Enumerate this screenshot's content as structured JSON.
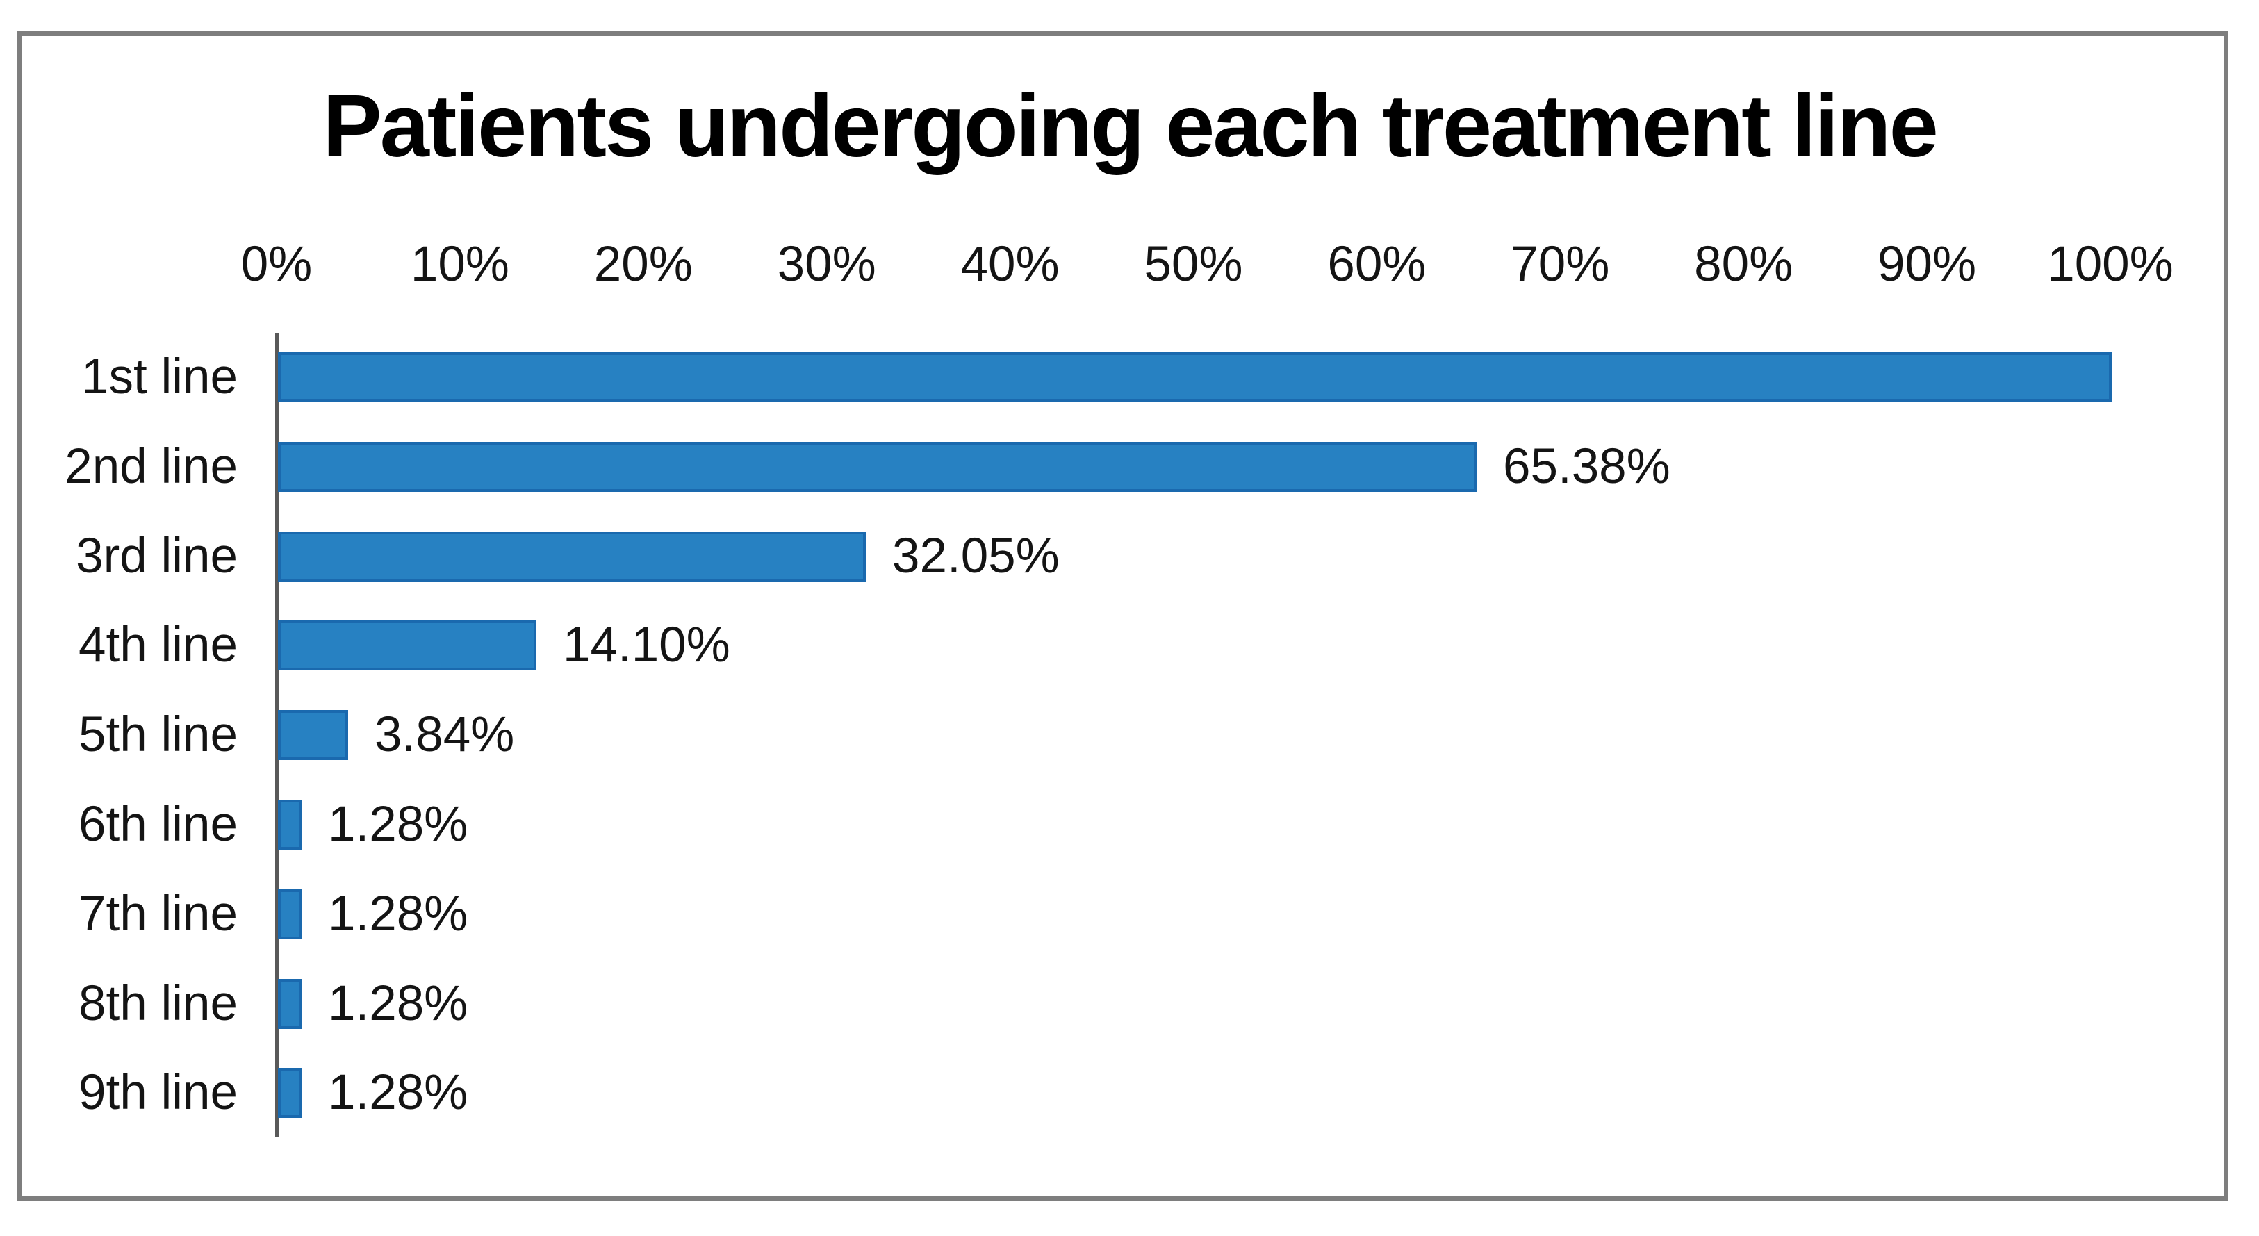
{
  "figure": {
    "background": "#ffffff",
    "frame_border_color": "#7e7e7e"
  },
  "chart_data": {
    "type": "bar",
    "orientation": "horizontal",
    "title": "Patients undergoing each treatment line",
    "categories": [
      "1st line",
      "2nd line",
      "3rd line",
      "4th line",
      "5th line",
      "6th line",
      "7th line",
      "8th line",
      "9th line"
    ],
    "values": [
      100,
      65.38,
      32.05,
      14.1,
      3.84,
      1.28,
      1.28,
      1.28,
      1.28
    ],
    "data_labels": [
      "",
      "65.38%",
      "32.05%",
      "14.10%",
      "3.84%",
      "1.28%",
      "1.28%",
      "1.28%",
      "1.28%"
    ],
    "x_axis": {
      "position": "top",
      "min": 0,
      "max": 100,
      "tick_step": 10,
      "ticks": [
        "0%",
        "10%",
        "20%",
        "30%",
        "40%",
        "50%",
        "60%",
        "70%",
        "80%",
        "90%",
        "100%"
      ]
    },
    "grid": false,
    "legend": false,
    "colors": {
      "bar_fill": "#2781c2",
      "bar_border": "#1a69ae",
      "axis_line": "#595959",
      "text": "#141414",
      "title": "#000000"
    }
  }
}
